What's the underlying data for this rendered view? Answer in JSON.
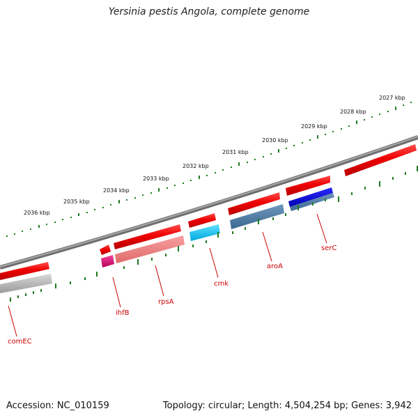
{
  "title": "Yersinia pestis Angola, complete genome",
  "accession": "Accession: NC_010159",
  "topology": "Topology: circular; Length: 4,504,254 bp; Genes: 3,942",
  "colors": {
    "backbone": "#808080",
    "ticks": "#1f7a1f",
    "label": "#cc0000"
  },
  "scale_labels": [
    "2027 kbp",
    "2028 kbp",
    "2029 kbp",
    "2030 kbp",
    "2031 kbp",
    "2032 kbp",
    "2033 kbp",
    "2034 kbp",
    "2035 kbp",
    "2036 kbp"
  ],
  "gene_labels": [
    "serC",
    "aroA",
    "cmk",
    "rpsA",
    "ihfB",
    "comEC"
  ]
}
